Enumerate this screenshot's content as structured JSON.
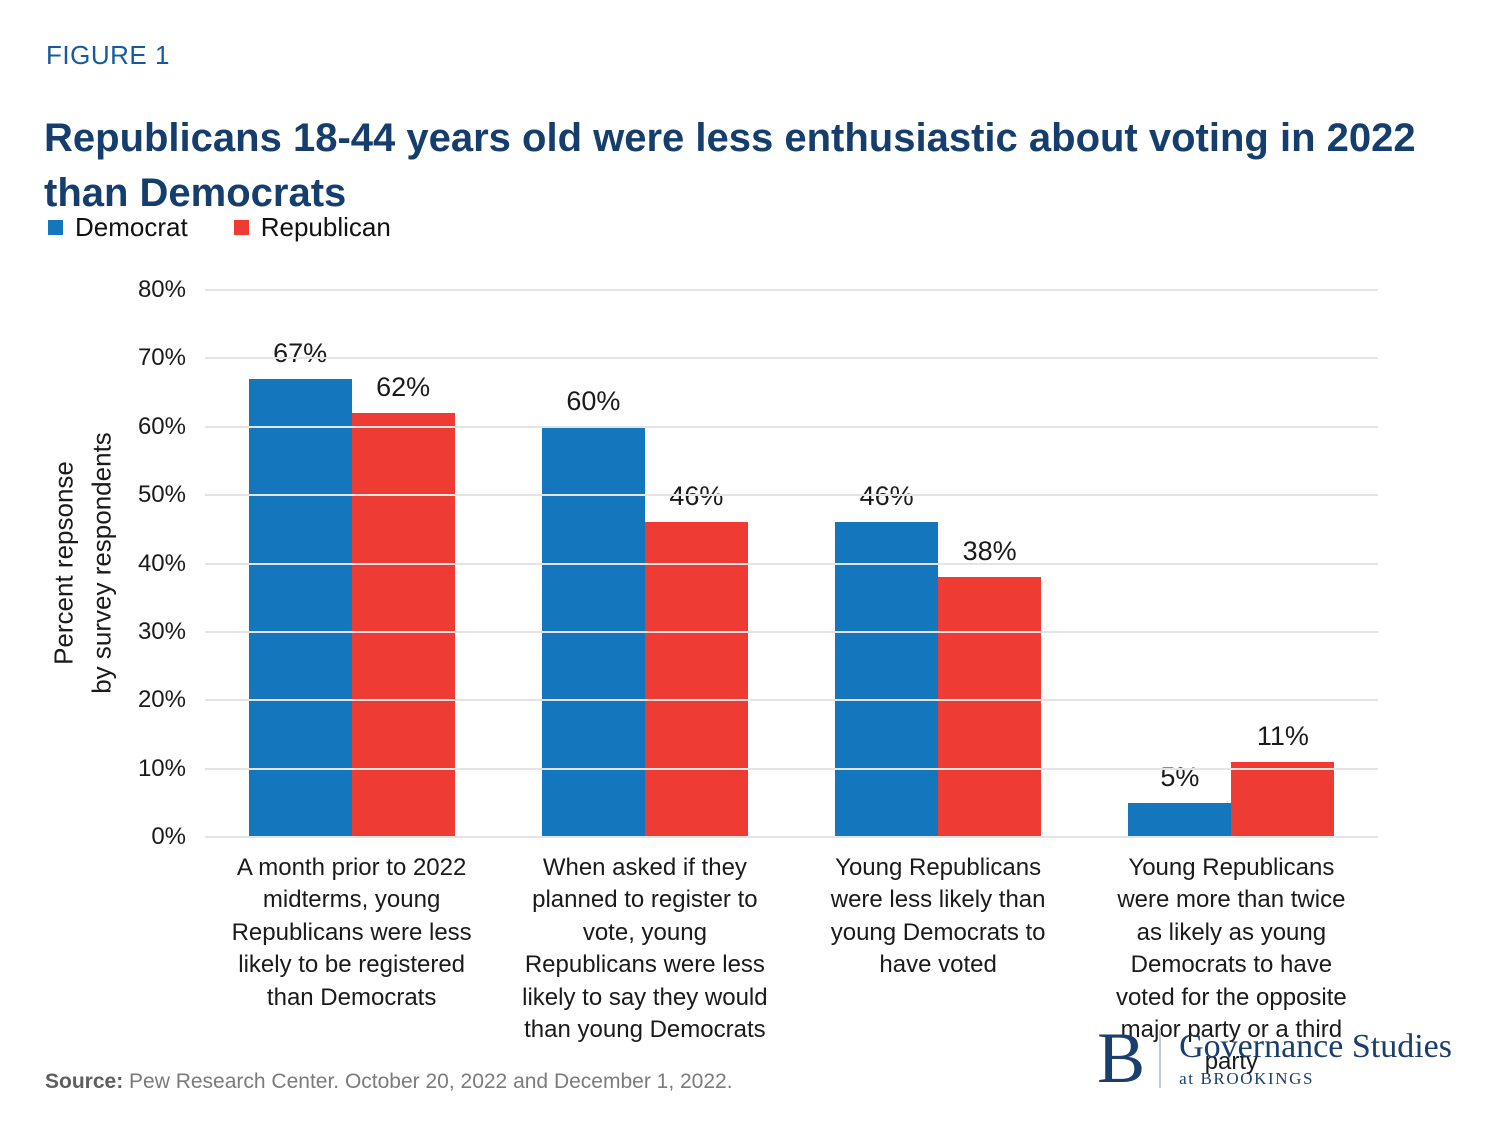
{
  "figure_label": "FIGURE 1",
  "title": "Republicans 18-44 years old were less enthusiastic about voting in 2022 than Democrats",
  "chart_data": {
    "type": "bar",
    "title": "Republicans 18-44 years old were less enthusiastic about voting in 2022 than Democrats",
    "categories": [
      "A month prior to 2022 midterms, young Republicans were less likely to be registered than Democrats",
      "When asked if they planned to register to vote, young Republicans were less likely to say they would than young Democrats",
      "Young Republicans were less likely than young Democrats to have voted",
      "Young Republicans were more than twice as likely as young Democrats to have voted for the opposite major party or a third party"
    ],
    "series": [
      {
        "name": "Democrat",
        "color": "#1477bd",
        "values": [
          67,
          60,
          46,
          5
        ]
      },
      {
        "name": "Republican",
        "color": "#ee3b33",
        "values": [
          62,
          46,
          38,
          11
        ]
      }
    ],
    "ylabel_lines": [
      "Percent repsonse",
      "by survey respondents"
    ],
    "ylim": [
      0,
      80
    ],
    "yticks": [
      0,
      10,
      20,
      30,
      40,
      50,
      60,
      70,
      80
    ],
    "tick_suffix": "%",
    "value_suffix": "%",
    "grid": true,
    "legend_position": "top-left"
  },
  "footer": {
    "source_label": "Source:",
    "source_text": " Pew Research Center. October 20, 2022 and December 1, 2022."
  },
  "logo": {
    "monogram": "B",
    "name": "Governance Studies",
    "sub": "at BROOKINGS"
  }
}
